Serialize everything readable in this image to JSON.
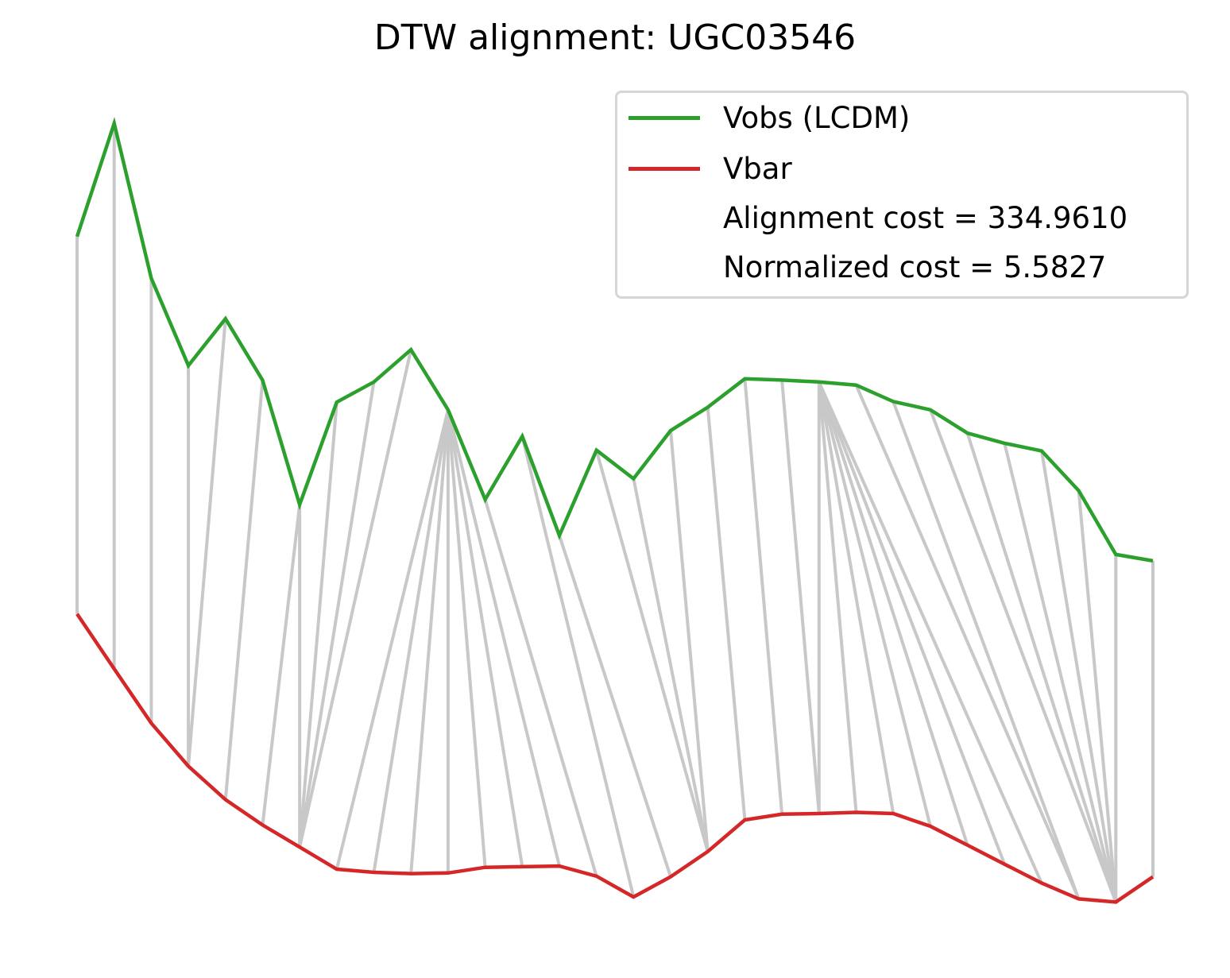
{
  "title": "DTW alignment: UGC03546",
  "colors": {
    "vobs": "#2ca02c",
    "vbar": "#d62728",
    "connector": "#c8c8c8",
    "legend_border": "#d6d6d6"
  },
  "legend": {
    "placement": "top-right",
    "entries": [
      {
        "label": "Vobs (LCDM)",
        "swatch": "vobs"
      },
      {
        "label": "Vbar",
        "swatch": "vbar"
      },
      {
        "label": "Alignment cost = 334.9610",
        "swatch": null
      },
      {
        "label": "Normalized cost = 5.5827",
        "swatch": null
      }
    ]
  },
  "chart_data": {
    "type": "line",
    "title": "DTW alignment: UGC03546",
    "xlabel": "",
    "ylabel": "",
    "axes_visible": false,
    "grid": false,
    "x": [
      0,
      1,
      2,
      3,
      4,
      5,
      6,
      7,
      8,
      9,
      10,
      11,
      12,
      13,
      14,
      15,
      16,
      17,
      18,
      19,
      20,
      21,
      22,
      23,
      24,
      25,
      26,
      27,
      28,
      29
    ],
    "series": [
      {
        "name": "Vobs (LCDM)",
        "color_key": "vobs",
        "values": [
          47.9,
          65.8,
          41.3,
          27.5,
          34.9,
          25.2,
          5.5,
          21.7,
          24.9,
          30.0,
          20.5,
          6.3,
          16.3,
          0.6,
          14.1,
          9.6,
          17.2,
          20.9,
          25.4,
          25.2,
          24.9,
          24.4,
          21.8,
          20.5,
          16.8,
          15.2,
          14.0,
          7.7,
          -2.4,
          -3.4
        ]
      },
      {
        "name": "Vbar",
        "color_key": "vbar",
        "values": [
          43.2,
          34.5,
          25.9,
          19.1,
          13.8,
          9.8,
          6.3,
          2.8,
          2.3,
          2.1,
          2.2,
          3.1,
          3.2,
          3.3,
          1.7,
          -1.6,
          1.6,
          5.6,
          10.6,
          11.5,
          11.6,
          11.8,
          11.6,
          9.6,
          6.6,
          3.6,
          0.6,
          -1.9,
          -2.4,
          1.6
        ]
      }
    ],
    "vertical_offset_between_series": 55,
    "alignment_path": [
      [
        0,
        0
      ],
      [
        1,
        1
      ],
      [
        2,
        2
      ],
      [
        3,
        3
      ],
      [
        4,
        3
      ],
      [
        5,
        4
      ],
      [
        6,
        5
      ],
      [
        6,
        6
      ],
      [
        7,
        6
      ],
      [
        8,
        6
      ],
      [
        9,
        6
      ],
      [
        10,
        7
      ],
      [
        10,
        8
      ],
      [
        10,
        9
      ],
      [
        10,
        10
      ],
      [
        10,
        11
      ],
      [
        10,
        12
      ],
      [
        10,
        13
      ],
      [
        11,
        14
      ],
      [
        12,
        15
      ],
      [
        13,
        16
      ],
      [
        14,
        17
      ],
      [
        15,
        17
      ],
      [
        16,
        17
      ],
      [
        17,
        18
      ],
      [
        18,
        19
      ],
      [
        19,
        20
      ],
      [
        20,
        20
      ],
      [
        20,
        21
      ],
      [
        20,
        22
      ],
      [
        20,
        23
      ],
      [
        20,
        24
      ],
      [
        20,
        25
      ],
      [
        20,
        26
      ],
      [
        21,
        27
      ],
      [
        22,
        27
      ],
      [
        23,
        28
      ],
      [
        24,
        28
      ],
      [
        25,
        28
      ],
      [
        26,
        28
      ],
      [
        27,
        28
      ],
      [
        28,
        28
      ],
      [
        29,
        29
      ]
    ],
    "alignment_cost": 334.961,
    "normalized_cost": 5.5827
  }
}
